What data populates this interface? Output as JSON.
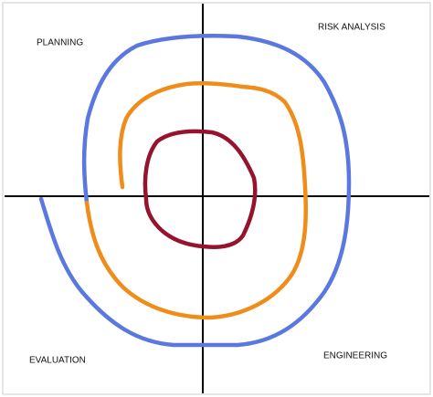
{
  "quadrants": [
    "PLANNING",
    "RISK ANALYSIS",
    "EVALUATION",
    "ENGINEERING"
  ]
}
